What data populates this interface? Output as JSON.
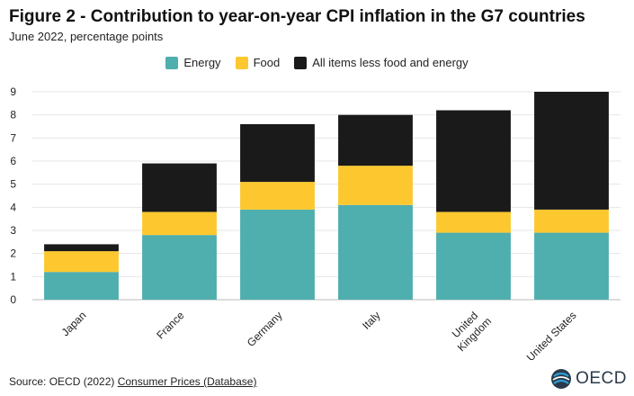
{
  "chart_data": {
    "type": "bar",
    "stacked": true,
    "title": "Figure 2 - Contribution to year-on-year CPI inflation in the G7 countries",
    "subtitle": "June 2022, percentage points",
    "categories": [
      "Japan",
      "France",
      "Germany",
      "Italy",
      "United Kingdom",
      "United States"
    ],
    "category_lines": [
      [
        "Japan"
      ],
      [
        "France"
      ],
      [
        "Germany"
      ],
      [
        "Italy"
      ],
      [
        "United",
        "Kingdom"
      ],
      [
        "United States"
      ]
    ],
    "series": [
      {
        "name": "Energy",
        "color": "#4faeae",
        "values": [
          1.2,
          2.8,
          3.9,
          4.1,
          2.9,
          2.9
        ]
      },
      {
        "name": "Food",
        "color": "#fdc82f",
        "values": [
          0.9,
          1.0,
          1.2,
          1.7,
          0.9,
          1.0
        ]
      },
      {
        "name": "All items less food and energy",
        "color": "#1a1a1a",
        "values": [
          0.3,
          2.1,
          2.5,
          2.2,
          4.4,
          5.1
        ]
      }
    ],
    "ylim": [
      0,
      9
    ],
    "yticks": [
      0,
      1,
      2,
      3,
      4,
      5,
      6,
      7,
      8,
      9
    ],
    "xlabel": "",
    "ylabel": "",
    "grid": true,
    "legend_position": "top-center"
  },
  "footer": {
    "source_prefix": "Source: OECD (2022) ",
    "source_link": "Consumer Prices (Database)"
  },
  "logo": {
    "text": "OECD",
    "icon": "oecd-globe-icon",
    "colors": [
      "#2a9fd6",
      "#2a3a4a"
    ]
  }
}
